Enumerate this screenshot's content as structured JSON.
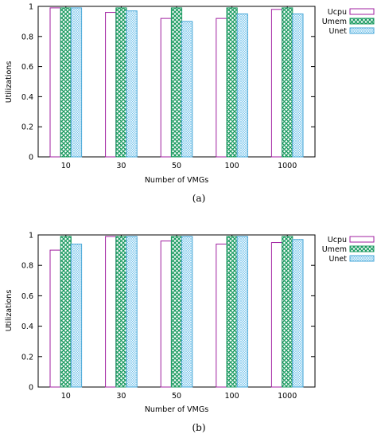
{
  "chart_data": [
    {
      "type": "bar",
      "caption": "(a)",
      "categories": [
        "10",
        "30",
        "50",
        "100",
        "1000"
      ],
      "series": [
        {
          "name": "Ucpu",
          "values": [
            0.99,
            0.96,
            0.92,
            0.92,
            0.98
          ]
        },
        {
          "name": "Umem",
          "values": [
            0.99,
            0.99,
            0.99,
            0.99,
            0.99
          ]
        },
        {
          "name": "Unet",
          "values": [
            0.99,
            0.97,
            0.9,
            0.95,
            0.95
          ]
        }
      ],
      "xlabel": "Number of VMGs",
      "ylabel": "Utilizations",
      "ylim": [
        0,
        1
      ],
      "yticks": [
        "0",
        "0.2",
        "0.4",
        "0.6",
        "0.8",
        "1"
      ],
      "legend_position": "top-right, outside plot",
      "grid": false
    },
    {
      "type": "bar",
      "caption": "(b)",
      "categories": [
        "10",
        "30",
        "50",
        "100",
        "1000"
      ],
      "series": [
        {
          "name": "Ucpu",
          "values": [
            0.9,
            0.99,
            0.96,
            0.94,
            0.95
          ]
        },
        {
          "name": "Umem",
          "values": [
            0.99,
            0.99,
            0.99,
            0.99,
            0.99
          ]
        },
        {
          "name": "Unet",
          "values": [
            0.94,
            0.99,
            0.99,
            0.99,
            0.97
          ]
        }
      ],
      "xlabel": "Number of VMGs",
      "ylabel": "Utilizations",
      "ylim": [
        0,
        1
      ],
      "yticks": [
        "0",
        "0.2",
        "0.4",
        "0.6",
        "0.8",
        "1"
      ],
      "legend_position": "top-right, outside plot",
      "grid": false
    }
  ],
  "colors": {
    "Ucpu": "#a020a0",
    "Umem": "#1a9a60",
    "Unet": "#4aa8d8"
  }
}
